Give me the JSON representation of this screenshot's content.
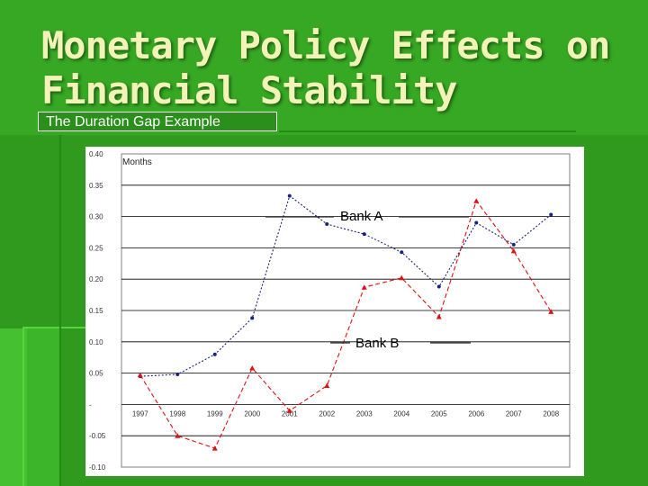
{
  "slide": {
    "title": "Monetary Policy Effects on Financial Stability",
    "subtitle": "The Duration Gap Example"
  },
  "colors": {
    "background": "#2f9a1e",
    "title": "#f3f3b8",
    "bank_a": "#1a237e",
    "bank_b": "#e01010"
  },
  "chart_data": {
    "type": "line",
    "title": "",
    "xlabel": "",
    "ylabel": "Months",
    "categories": [
      "1997",
      "1998",
      "1999",
      "2000",
      "2001",
      "2002",
      "2003",
      "2004",
      "2005",
      "2006",
      "2007",
      "2008"
    ],
    "y_ticks": [
      "0.40",
      "0.35",
      "0.30",
      "0.25",
      "0.20",
      "0.15",
      "0.10",
      "0.05",
      "-",
      "-0.05",
      "-0.10"
    ],
    "ylim": [
      -0.1,
      0.4
    ],
    "grid": true,
    "series": [
      {
        "name": "Bank A",
        "marker": "dot",
        "style": "dashed",
        "values": [
          0.045,
          0.048,
          0.08,
          0.138,
          0.333,
          0.288,
          0.272,
          0.243,
          0.188,
          0.29,
          0.255,
          0.303
        ]
      },
      {
        "name": "Bank B",
        "marker": "triangle",
        "style": "dashed",
        "values": [
          0.047,
          -0.05,
          -0.07,
          0.058,
          -0.01,
          0.03,
          0.187,
          0.202,
          0.14,
          0.325,
          0.245,
          0.148
        ]
      }
    ]
  }
}
